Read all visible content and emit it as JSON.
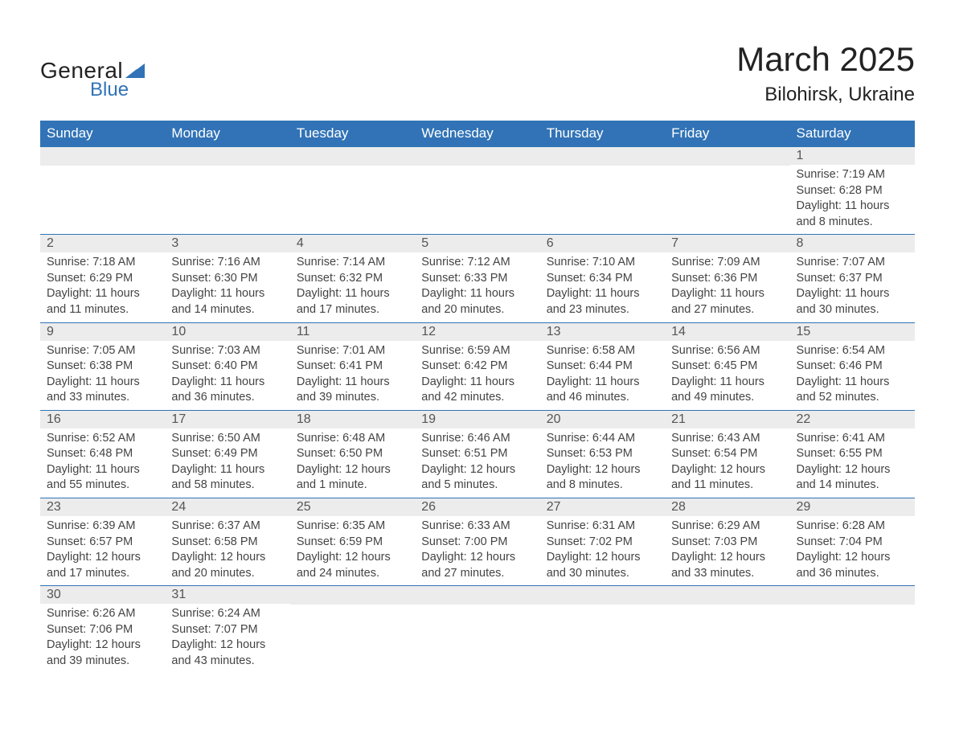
{
  "logo": {
    "general": "General",
    "blue": "Blue",
    "triangle_color": "#3173b6"
  },
  "title": {
    "month": "March 2025",
    "location": "Bilohirsk, Ukraine"
  },
  "colors": {
    "header_bg": "#3173b6",
    "header_text": "#ffffff",
    "daynum_bg": "#ececec",
    "daynum_border_top": "#3173b6",
    "body_text": "#444444",
    "page_bg": "#ffffff"
  },
  "typography": {
    "month_title_fontsize": 42,
    "location_fontsize": 24,
    "weekday_fontsize": 17,
    "daynum_fontsize": 16,
    "detail_fontsize": 14.5
  },
  "calendar": {
    "type": "table",
    "columns": [
      "Sunday",
      "Monday",
      "Tuesday",
      "Wednesday",
      "Thursday",
      "Friday",
      "Saturday"
    ],
    "weeks": [
      [
        null,
        null,
        null,
        null,
        null,
        null,
        {
          "n": "1",
          "sr": "Sunrise: 7:19 AM",
          "ss": "Sunset: 6:28 PM",
          "d1": "Daylight: 11 hours",
          "d2": "and 8 minutes."
        }
      ],
      [
        {
          "n": "2",
          "sr": "Sunrise: 7:18 AM",
          "ss": "Sunset: 6:29 PM",
          "d1": "Daylight: 11 hours",
          "d2": "and 11 minutes."
        },
        {
          "n": "3",
          "sr": "Sunrise: 7:16 AM",
          "ss": "Sunset: 6:30 PM",
          "d1": "Daylight: 11 hours",
          "d2": "and 14 minutes."
        },
        {
          "n": "4",
          "sr": "Sunrise: 7:14 AM",
          "ss": "Sunset: 6:32 PM",
          "d1": "Daylight: 11 hours",
          "d2": "and 17 minutes."
        },
        {
          "n": "5",
          "sr": "Sunrise: 7:12 AM",
          "ss": "Sunset: 6:33 PM",
          "d1": "Daylight: 11 hours",
          "d2": "and 20 minutes."
        },
        {
          "n": "6",
          "sr": "Sunrise: 7:10 AM",
          "ss": "Sunset: 6:34 PM",
          "d1": "Daylight: 11 hours",
          "d2": "and 23 minutes."
        },
        {
          "n": "7",
          "sr": "Sunrise: 7:09 AM",
          "ss": "Sunset: 6:36 PM",
          "d1": "Daylight: 11 hours",
          "d2": "and 27 minutes."
        },
        {
          "n": "8",
          "sr": "Sunrise: 7:07 AM",
          "ss": "Sunset: 6:37 PM",
          "d1": "Daylight: 11 hours",
          "d2": "and 30 minutes."
        }
      ],
      [
        {
          "n": "9",
          "sr": "Sunrise: 7:05 AM",
          "ss": "Sunset: 6:38 PM",
          "d1": "Daylight: 11 hours",
          "d2": "and 33 minutes."
        },
        {
          "n": "10",
          "sr": "Sunrise: 7:03 AM",
          "ss": "Sunset: 6:40 PM",
          "d1": "Daylight: 11 hours",
          "d2": "and 36 minutes."
        },
        {
          "n": "11",
          "sr": "Sunrise: 7:01 AM",
          "ss": "Sunset: 6:41 PM",
          "d1": "Daylight: 11 hours",
          "d2": "and 39 minutes."
        },
        {
          "n": "12",
          "sr": "Sunrise: 6:59 AM",
          "ss": "Sunset: 6:42 PM",
          "d1": "Daylight: 11 hours",
          "d2": "and 42 minutes."
        },
        {
          "n": "13",
          "sr": "Sunrise: 6:58 AM",
          "ss": "Sunset: 6:44 PM",
          "d1": "Daylight: 11 hours",
          "d2": "and 46 minutes."
        },
        {
          "n": "14",
          "sr": "Sunrise: 6:56 AM",
          "ss": "Sunset: 6:45 PM",
          "d1": "Daylight: 11 hours",
          "d2": "and 49 minutes."
        },
        {
          "n": "15",
          "sr": "Sunrise: 6:54 AM",
          "ss": "Sunset: 6:46 PM",
          "d1": "Daylight: 11 hours",
          "d2": "and 52 minutes."
        }
      ],
      [
        {
          "n": "16",
          "sr": "Sunrise: 6:52 AM",
          "ss": "Sunset: 6:48 PM",
          "d1": "Daylight: 11 hours",
          "d2": "and 55 minutes."
        },
        {
          "n": "17",
          "sr": "Sunrise: 6:50 AM",
          "ss": "Sunset: 6:49 PM",
          "d1": "Daylight: 11 hours",
          "d2": "and 58 minutes."
        },
        {
          "n": "18",
          "sr": "Sunrise: 6:48 AM",
          "ss": "Sunset: 6:50 PM",
          "d1": "Daylight: 12 hours",
          "d2": "and 1 minute."
        },
        {
          "n": "19",
          "sr": "Sunrise: 6:46 AM",
          "ss": "Sunset: 6:51 PM",
          "d1": "Daylight: 12 hours",
          "d2": "and 5 minutes."
        },
        {
          "n": "20",
          "sr": "Sunrise: 6:44 AM",
          "ss": "Sunset: 6:53 PM",
          "d1": "Daylight: 12 hours",
          "d2": "and 8 minutes."
        },
        {
          "n": "21",
          "sr": "Sunrise: 6:43 AM",
          "ss": "Sunset: 6:54 PM",
          "d1": "Daylight: 12 hours",
          "d2": "and 11 minutes."
        },
        {
          "n": "22",
          "sr": "Sunrise: 6:41 AM",
          "ss": "Sunset: 6:55 PM",
          "d1": "Daylight: 12 hours",
          "d2": "and 14 minutes."
        }
      ],
      [
        {
          "n": "23",
          "sr": "Sunrise: 6:39 AM",
          "ss": "Sunset: 6:57 PM",
          "d1": "Daylight: 12 hours",
          "d2": "and 17 minutes."
        },
        {
          "n": "24",
          "sr": "Sunrise: 6:37 AM",
          "ss": "Sunset: 6:58 PM",
          "d1": "Daylight: 12 hours",
          "d2": "and 20 minutes."
        },
        {
          "n": "25",
          "sr": "Sunrise: 6:35 AM",
          "ss": "Sunset: 6:59 PM",
          "d1": "Daylight: 12 hours",
          "d2": "and 24 minutes."
        },
        {
          "n": "26",
          "sr": "Sunrise: 6:33 AM",
          "ss": "Sunset: 7:00 PM",
          "d1": "Daylight: 12 hours",
          "d2": "and 27 minutes."
        },
        {
          "n": "27",
          "sr": "Sunrise: 6:31 AM",
          "ss": "Sunset: 7:02 PM",
          "d1": "Daylight: 12 hours",
          "d2": "and 30 minutes."
        },
        {
          "n": "28",
          "sr": "Sunrise: 6:29 AM",
          "ss": "Sunset: 7:03 PM",
          "d1": "Daylight: 12 hours",
          "d2": "and 33 minutes."
        },
        {
          "n": "29",
          "sr": "Sunrise: 6:28 AM",
          "ss": "Sunset: 7:04 PM",
          "d1": "Daylight: 12 hours",
          "d2": "and 36 minutes."
        }
      ],
      [
        {
          "n": "30",
          "sr": "Sunrise: 6:26 AM",
          "ss": "Sunset: 7:06 PM",
          "d1": "Daylight: 12 hours",
          "d2": "and 39 minutes."
        },
        {
          "n": "31",
          "sr": "Sunrise: 6:24 AM",
          "ss": "Sunset: 7:07 PM",
          "d1": "Daylight: 12 hours",
          "d2": "and 43 minutes."
        },
        null,
        null,
        null,
        null,
        null
      ]
    ]
  }
}
